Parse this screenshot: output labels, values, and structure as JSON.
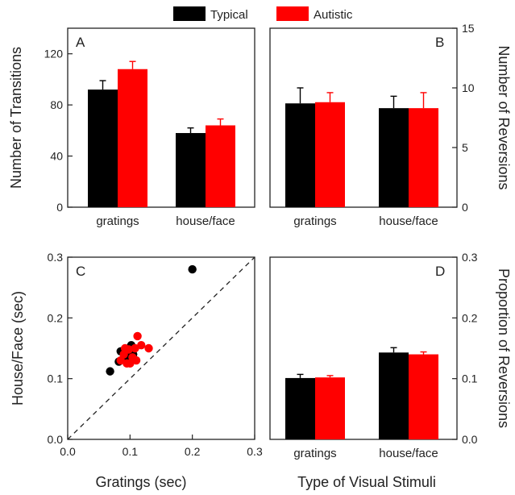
{
  "legend": [
    {
      "label": "Typical",
      "color": "#000000"
    },
    {
      "label": "Autistic",
      "color": "#ff0000"
    }
  ],
  "chart_data": [
    {
      "panel": "A",
      "type": "bar",
      "categories": [
        "gratings",
        "house/face"
      ],
      "ylabel": "Number of Transitions",
      "ylim": [
        0,
        140
      ],
      "yticks": [
        0,
        40,
        80,
        120
      ],
      "series": [
        {
          "name": "Typical",
          "color": "#000000",
          "values": [
            92,
            58
          ],
          "errors": [
            7,
            4
          ]
        },
        {
          "name": "Autistic",
          "color": "#ff0000",
          "values": [
            108,
            64
          ],
          "errors": [
            6,
            5
          ]
        }
      ]
    },
    {
      "panel": "B",
      "type": "bar",
      "categories": [
        "gratings",
        "house/face"
      ],
      "ylabel": "Number of Reversions",
      "ylim": [
        0,
        15
      ],
      "yticks": [
        0,
        5,
        10,
        15
      ],
      "yaxis_side": "right",
      "series": [
        {
          "name": "Typical",
          "color": "#000000",
          "values": [
            8.7,
            8.3
          ],
          "errors": [
            1.3,
            1.0
          ]
        },
        {
          "name": "Autistic",
          "color": "#ff0000",
          "values": [
            8.8,
            8.3
          ],
          "errors": [
            0.8,
            1.3
          ]
        }
      ]
    },
    {
      "panel": "C",
      "type": "scatter",
      "xlabel": "Gratings (sec)",
      "ylabel": "House/Face (sec)",
      "xlim": [
        0,
        0.3
      ],
      "ylim": [
        0,
        0.3
      ],
      "xticks": [
        0.0,
        0.1,
        0.2,
        0.3
      ],
      "yticks": [
        0.0,
        0.1,
        0.2,
        0.3
      ],
      "tick_labels": [
        "0.0",
        "0.1",
        "0.2",
        "0.3"
      ],
      "identity_line": true,
      "series": [
        {
          "name": "Typical",
          "color": "#000000",
          "points": [
            [
              0.068,
              0.112
            ],
            [
              0.082,
              0.128
            ],
            [
              0.085,
              0.145
            ],
            [
              0.093,
              0.138
            ],
            [
              0.098,
              0.15
            ],
            [
              0.102,
              0.155
            ],
            [
              0.1,
              0.145
            ],
            [
              0.105,
              0.14
            ],
            [
              0.095,
              0.132
            ],
            [
              0.2,
              0.28
            ]
          ]
        },
        {
          "name": "Autistic",
          "color": "#ff0000",
          "points": [
            [
              0.085,
              0.13
            ],
            [
              0.09,
              0.14
            ],
            [
              0.095,
              0.125
            ],
            [
              0.098,
              0.148
            ],
            [
              0.1,
              0.125
            ],
            [
              0.104,
              0.135
            ],
            [
              0.108,
              0.15
            ],
            [
              0.112,
              0.17
            ],
            [
              0.118,
              0.155
            ],
            [
              0.13,
              0.15
            ],
            [
              0.11,
              0.13
            ],
            [
              0.092,
              0.15
            ]
          ]
        }
      ]
    },
    {
      "panel": "D",
      "type": "bar",
      "categories": [
        "gratings",
        "house/face"
      ],
      "xlabel": "Type of Visual Stimuli",
      "ylabel": "Proportion of Reversions",
      "ylim": [
        0,
        0.3
      ],
      "yticks": [
        0.0,
        0.1,
        0.2,
        0.3
      ],
      "tick_labels": [
        "0.0",
        "0.1",
        "0.2",
        "0.3"
      ],
      "yaxis_side": "right",
      "series": [
        {
          "name": "Typical",
          "color": "#000000",
          "values": [
            0.101,
            0.143
          ],
          "errors": [
            0.006,
            0.008
          ]
        },
        {
          "name": "Autistic",
          "color": "#ff0000",
          "values": [
            0.102,
            0.14
          ],
          "errors": [
            0.003,
            0.004
          ]
        }
      ]
    }
  ]
}
